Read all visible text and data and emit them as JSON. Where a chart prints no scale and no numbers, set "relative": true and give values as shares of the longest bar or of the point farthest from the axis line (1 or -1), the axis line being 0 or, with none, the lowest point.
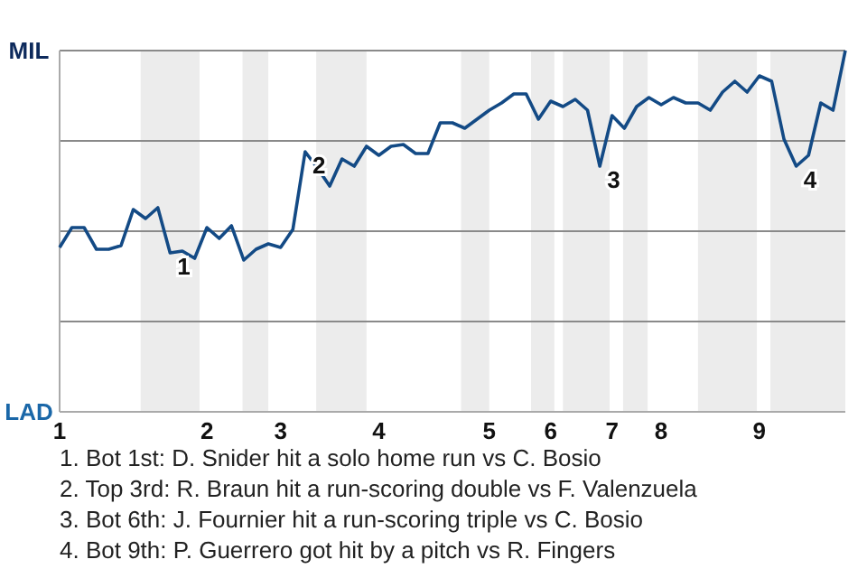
{
  "chart_data": {
    "type": "line",
    "relative": true,
    "marker": "none",
    "line_style": "solid",
    "categories": [
      "1",
      null,
      null,
      null,
      null,
      null,
      null,
      null,
      null,
      null,
      null,
      null,
      "2",
      null,
      null,
      null,
      null,
      null,
      "3",
      null,
      null,
      null,
      null,
      null,
      null,
      null,
      "4",
      null,
      null,
      null,
      null,
      null,
      null,
      null,
      null,
      "5",
      null,
      null,
      null,
      null,
      "6",
      null,
      null,
      null,
      null,
      "7",
      null,
      null,
      null,
      "8",
      null,
      null,
      null,
      null,
      null,
      null,
      null,
      "9",
      null,
      null,
      null,
      null,
      null,
      null,
      null
    ],
    "ref_lines": [
      {
        "axis": "y",
        "value": 1,
        "color": "#8a8a8a"
      },
      {
        "axis": "y",
        "value": 0.75,
        "color": "#8a8a8a"
      },
      {
        "axis": "y",
        "value": 0.5,
        "color": "#8a8a8a"
      },
      {
        "axis": "y",
        "value": 0.25,
        "color": "#8a8a8a"
      }
    ],
    "series": [
      {
        "color": "#134a85",
        "values": [
          0.455,
          0.51,
          0.51,
          0.45,
          0.45,
          0.46,
          0.56,
          0.535,
          0.565,
          0.44,
          0.445,
          0.425,
          0.51,
          0.48,
          0.515,
          0.42,
          0.45,
          0.465,
          0.455,
          0.505,
          0.72,
          0.675,
          0.625,
          0.7,
          0.68,
          0.735,
          0.71,
          0.735,
          0.74,
          0.715,
          0.715,
          0.8,
          0.8,
          0.785,
          0.81,
          0.835,
          0.855,
          0.88,
          0.88,
          0.81,
          0.86,
          0.845,
          0.865,
          0.835,
          0.68,
          0.82,
          0.785,
          0.845,
          0.87,
          0.85,
          0.87,
          0.855,
          0.855,
          0.835,
          0.885,
          0.915,
          0.885,
          0.93,
          0.915,
          0.755,
          0.68,
          0.71,
          0.855,
          0.835,
          1.0
        ]
      }
    ],
    "annotations": [
      "MIL",
      "LAD",
      "1",
      "2",
      "3",
      "4",
      "1. Bot 1st: D. Snider hit a solo home run vs C. Bosio",
      "2. Top 3rd: R. Braun hit a run-scoring double vs F. Valenzuela",
      "3. Bot 6th: J. Fournier hit a run-scoring triple vs C. Bosio",
      "4. Bot 9th: P. Guerrero got hit by a pitch vs R. Fingers"
    ]
  }
}
